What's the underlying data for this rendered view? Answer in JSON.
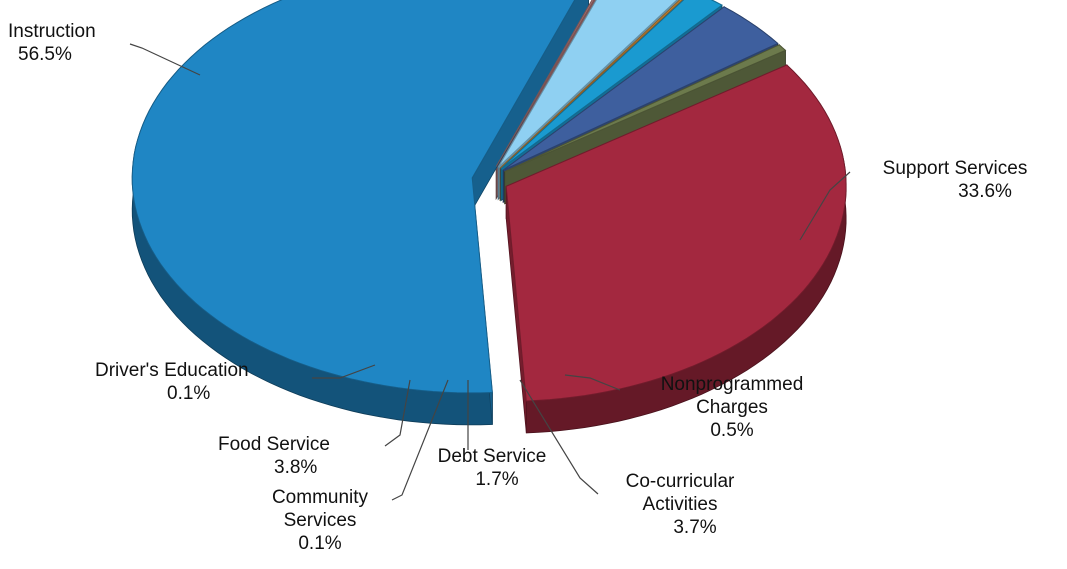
{
  "chart_data": {
    "type": "pie",
    "style": "3d-exploded",
    "slices": [
      {
        "key": "instruction",
        "name": "Instruction",
        "value": 56.5,
        "label": "56.5%",
        "color": "#1f86c4"
      },
      {
        "key": "support",
        "name": "Support Services",
        "value": 33.6,
        "label": "33.6%",
        "color": "#a3283f"
      },
      {
        "key": "nonprog",
        "name": "Nonprogrammed Charges",
        "value": 0.5,
        "label": "0.5%",
        "color": "#6c7a4c"
      },
      {
        "key": "cocurr",
        "name": "Co-curricular Activities",
        "value": 3.7,
        "label": "3.7%",
        "color": "#3e5f9e"
      },
      {
        "key": "debt",
        "name": "Debt Service",
        "value": 1.7,
        "label": "1.7%",
        "color": "#1a9ad0"
      },
      {
        "key": "community",
        "name": "Community Services",
        "value": 0.1,
        "label": "0.1%",
        "color": "#c98a3a"
      },
      {
        "key": "food",
        "name": "Food Service",
        "value": 3.8,
        "label": "3.8%",
        "color": "#8fd0f2"
      },
      {
        "key": "drivers",
        "name": "Driver's Education",
        "value": 0.1,
        "label": "0.1%",
        "color": "#b0787a"
      }
    ],
    "text": {
      "instruction": {
        "l1": "Instruction",
        "pct": "56.5%"
      },
      "support": {
        "l1": "Support Services",
        "pct": "33.6%"
      },
      "nonprog": {
        "l1": "Nonprogrammed",
        "l2": "Charges",
        "pct": "0.5%"
      },
      "cocurr": {
        "l1": "Co-curricular",
        "l2": "Activities",
        "pct": "3.7%"
      },
      "debt": {
        "l1": "Debt Service",
        "pct": "1.7%"
      },
      "community": {
        "l1": "Community",
        "l2": "Services",
        "pct": "0.1%"
      },
      "food": {
        "l1": "Food Service",
        "pct": "3.8%"
      },
      "drivers": {
        "l1": "Driver's Education",
        "pct": "0.1%"
      }
    },
    "legend": "none"
  }
}
